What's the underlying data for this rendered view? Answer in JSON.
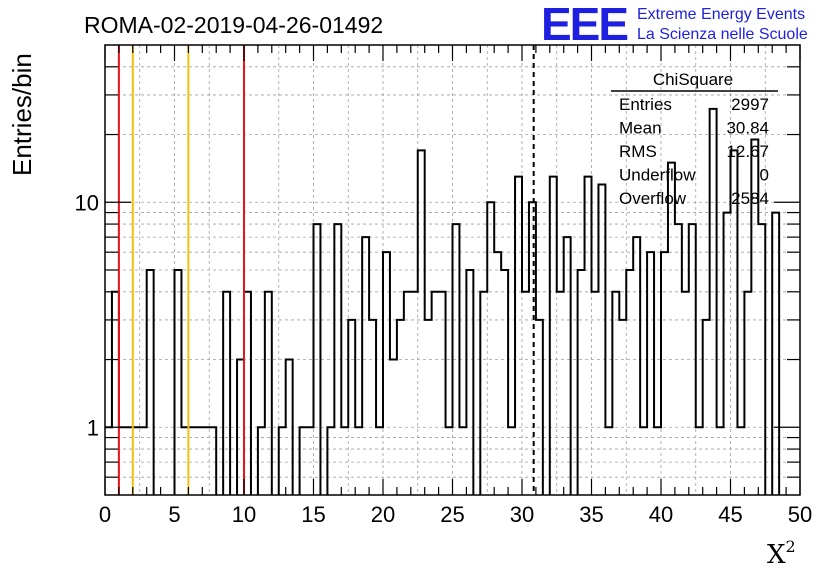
{
  "header": {
    "title": "ROMA-02-2019-04-26-01492",
    "logo_text": "EEE",
    "logo_line1": "Extreme Energy Events",
    "logo_line2": "La Scienza nelle Scuole"
  },
  "stats_box": {
    "title": "ChiSquare",
    "rows": [
      {
        "label": "Entries",
        "value": "2997"
      },
      {
        "label": "Mean",
        "value": "30.84"
      },
      {
        "label": "RMS",
        "value": "12.67"
      },
      {
        "label": "Underflow",
        "value": "0"
      },
      {
        "label": "Overflow",
        "value": "2584"
      }
    ]
  },
  "colors": {
    "histogram": "#000000",
    "red_line": "#e8141a",
    "yellow_line": "#f0c010",
    "grid": "#a0a0a0"
  },
  "chart_data": {
    "type": "histogram",
    "title": "ROMA-02-2019-04-26-01492",
    "xlabel": "X",
    "xlabel_superscript": "2",
    "ylabel": "Entries/bin",
    "xlim": [
      0,
      50
    ],
    "ylim": [
      0.5,
      50
    ],
    "y_scale": "log",
    "grid": true,
    "bin_width": 0.5,
    "x_ticks": [
      0,
      5,
      10,
      15,
      20,
      25,
      30,
      35,
      40,
      45,
      50
    ],
    "y_ticks": [
      1,
      10
    ],
    "bins": [
      [
        0,
        1
      ],
      [
        0.5,
        4
      ],
      [
        1,
        1
      ],
      [
        1.5,
        1
      ],
      [
        2,
        1
      ],
      [
        2.5,
        1
      ],
      [
        3,
        5
      ],
      [
        3.5,
        0
      ],
      [
        4,
        0
      ],
      [
        4.5,
        0
      ],
      [
        5,
        5
      ],
      [
        5.5,
        1
      ],
      [
        6,
        1
      ],
      [
        6.5,
        1
      ],
      [
        7,
        1
      ],
      [
        7.5,
        1
      ],
      [
        8,
        0
      ],
      [
        8.5,
        4
      ],
      [
        9,
        0
      ],
      [
        9.5,
        2
      ],
      [
        10,
        4
      ],
      [
        10.5,
        0
      ],
      [
        11,
        1
      ],
      [
        11.5,
        4
      ],
      [
        12,
        0
      ],
      [
        12.5,
        1
      ],
      [
        13,
        2
      ],
      [
        13.5,
        0
      ],
      [
        14,
        1
      ],
      [
        14.5,
        1
      ],
      [
        15,
        8
      ],
      [
        15.5,
        0
      ],
      [
        16,
        1
      ],
      [
        16.5,
        8
      ],
      [
        17,
        1
      ],
      [
        17.5,
        3
      ],
      [
        18,
        1
      ],
      [
        18.5,
        7
      ],
      [
        19,
        3
      ],
      [
        19.5,
        1
      ],
      [
        20,
        6
      ],
      [
        20.5,
        2
      ],
      [
        21,
        3
      ],
      [
        21.5,
        4
      ],
      [
        22,
        4
      ],
      [
        22.5,
        17
      ],
      [
        23,
        3
      ],
      [
        23.5,
        4
      ],
      [
        24,
        4
      ],
      [
        24.5,
        1
      ],
      [
        25,
        8
      ],
      [
        25.5,
        1
      ],
      [
        26,
        5
      ],
      [
        26.5,
        0
      ],
      [
        27,
        4
      ],
      [
        27.5,
        10
      ],
      [
        28,
        6
      ],
      [
        28.5,
        5
      ],
      [
        29,
        1
      ],
      [
        29.5,
        13
      ],
      [
        30,
        4
      ],
      [
        30.5,
        10
      ],
      [
        31,
        3
      ],
      [
        31.5,
        0
      ],
      [
        32,
        13
      ],
      [
        32.5,
        4
      ],
      [
        33,
        7
      ],
      [
        33.5,
        0
      ],
      [
        34,
        5
      ],
      [
        34.5,
        13
      ],
      [
        35,
        4
      ],
      [
        35.5,
        12
      ],
      [
        36,
        1
      ],
      [
        36.5,
        4
      ],
      [
        37,
        3
      ],
      [
        37.5,
        5
      ],
      [
        38,
        7
      ],
      [
        38.5,
        1
      ],
      [
        39,
        6
      ],
      [
        39.5,
        1
      ],
      [
        40,
        6
      ],
      [
        40.5,
        15
      ],
      [
        41,
        8
      ],
      [
        41.5,
        4
      ],
      [
        42,
        8
      ],
      [
        42.5,
        1
      ],
      [
        43,
        3
      ],
      [
        43.5,
        26
      ],
      [
        44,
        1
      ],
      [
        44.5,
        9
      ],
      [
        45,
        17
      ],
      [
        45.5,
        1
      ],
      [
        46,
        4
      ],
      [
        46.5,
        19
      ],
      [
        47,
        8
      ],
      [
        47.5,
        0
      ],
      [
        48,
        9
      ],
      [
        48.5,
        0
      ]
    ],
    "vertical_lines": [
      {
        "x": 1,
        "color": "red",
        "style": "solid"
      },
      {
        "x": 2,
        "color": "yellow",
        "style": "solid"
      },
      {
        "x": 6,
        "color": "yellow",
        "style": "solid"
      },
      {
        "x": 10,
        "color": "red",
        "style": "solid"
      },
      {
        "x": 30.84,
        "color": "black",
        "style": "dashed"
      }
    ]
  }
}
